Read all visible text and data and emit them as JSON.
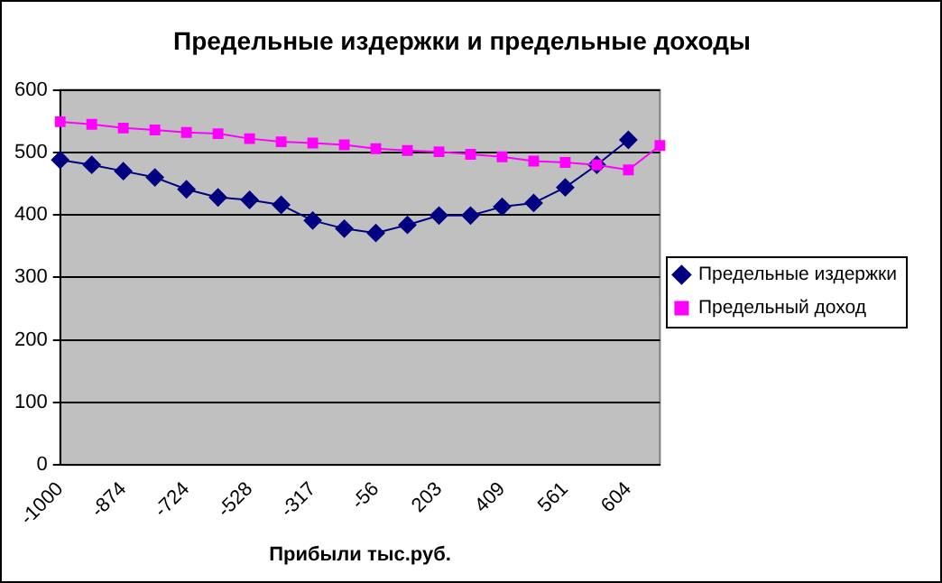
{
  "chart_data": {
    "type": "line",
    "title": "Предельные издержки и предельные доходы",
    "xlabel": "Прибыли тыс.руб.",
    "categories": [
      "-1000",
      null,
      "-874",
      null,
      "-724",
      null,
      "-528",
      null,
      "-317",
      null,
      "-56",
      null,
      "203",
      null,
      "409",
      null,
      "561",
      null,
      "604",
      null
    ],
    "series": [
      {
        "name": "Предельные издержки",
        "color": "#000080",
        "marker": "diamond",
        "values": [
          488,
          480,
          470,
          460,
          441,
          428,
          424,
          416,
          391,
          378,
          371,
          384,
          399,
          399,
          413,
          419,
          444,
          480,
          520,
          null
        ]
      },
      {
        "name": "Предельный доход",
        "color": "#ff00ff",
        "marker": "square",
        "values": [
          549,
          545,
          539,
          536,
          532,
          530,
          522,
          517,
          515,
          512,
          506,
          503,
          501,
          497,
          493,
          486,
          484,
          480,
          472,
          511
        ]
      }
    ],
    "ylim": [
      0,
      600
    ],
    "yticks": [
      0,
      100,
      200,
      300,
      400,
      500,
      600
    ],
    "grid": "y",
    "legend": "right",
    "line_style": "solid"
  }
}
